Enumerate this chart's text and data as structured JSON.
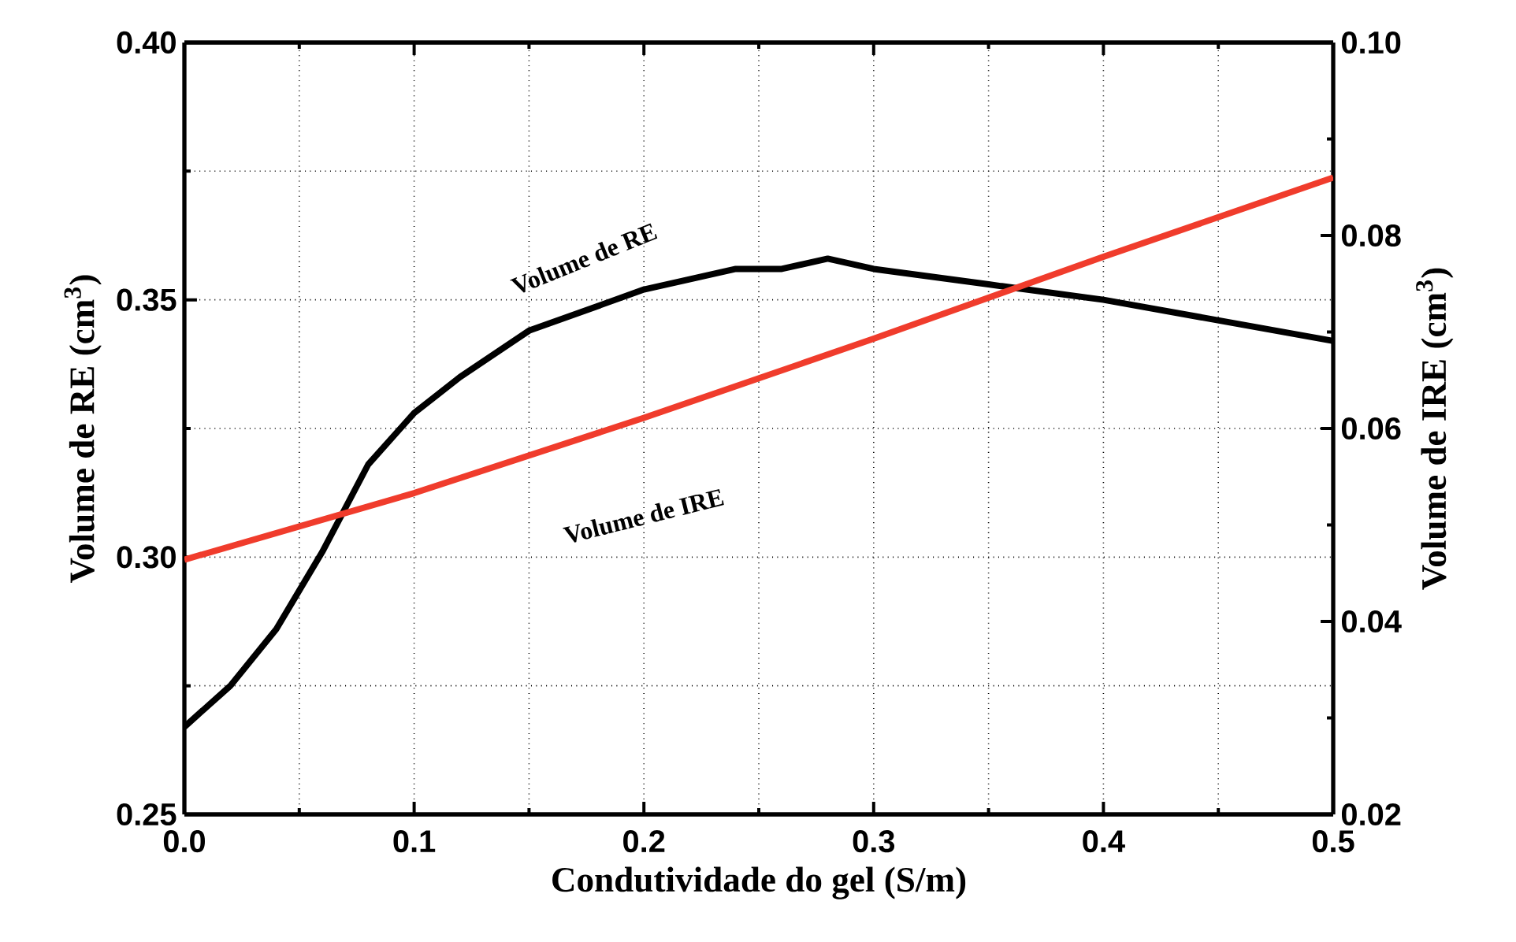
{
  "chart_data": {
    "type": "line",
    "xlabel": "Condutividade do gel (S/m)",
    "ylabel": "Volume de RE (cm$^{3}$)",
    "y2label": "Volume de IRE (cm$^{3}$)",
    "annotations": [
      "Volume de RE",
      "Volume de IRE"
    ],
    "xlim": [
      0,
      0.5
    ],
    "ylim": [
      0.25,
      0.4
    ],
    "y2lim": [
      0.02,
      0.1
    ],
    "xticks": [
      {
        "value": 0,
        "label": "0.0"
      },
      {
        "value": 0.1,
        "label": "0.1"
      },
      {
        "value": 0.2,
        "label": "0.2"
      },
      {
        "value": 0.3,
        "label": "0.3"
      },
      {
        "value": 0.4,
        "label": "0.4"
      },
      {
        "value": 0.5,
        "label": "0.5"
      }
    ],
    "yticks": [
      {
        "value": 0.25,
        "label": "0.25"
      },
      {
        "value": 0.3,
        "label": "0.30"
      },
      {
        "value": 0.35,
        "label": "0.35"
      },
      {
        "value": 0.4,
        "label": "0.40"
      }
    ],
    "y2ticks": [
      {
        "value": 0.02,
        "label": "0.02"
      },
      {
        "value": 0.04,
        "label": "0.04"
      },
      {
        "value": 0.06,
        "label": "0.06"
      },
      {
        "value": 0.08,
        "label": "0.08"
      },
      {
        "value": 0.1,
        "label": "0.10"
      }
    ],
    "grid": true,
    "marker": "none",
    "line_style": "solid",
    "series": [
      {
        "color": "#000000",
        "x": [
          0,
          0.02,
          0.04,
          0.06,
          0.08,
          0.1,
          0.12,
          0.15,
          0.2,
          0.24,
          0.26,
          0.28,
          0.3,
          0.35,
          0.4,
          0.45,
          0.5
        ],
        "values": [
          0.267,
          0.275,
          0.286,
          0.301,
          0.318,
          0.328,
          0.335,
          0.344,
          0.352,
          0.356,
          0.356,
          0.358,
          0.356,
          0.353,
          0.35,
          0.346,
          0.342
        ]
      },
      {
        "color": "#f03c2c",
        "axis": "y2",
        "x": [
          0,
          0.1,
          0.2,
          0.3,
          0.4,
          0.5
        ],
        "values": [
          0.0464,
          0.0533,
          0.0611,
          0.0693,
          0.0778,
          0.086
        ]
      }
    ]
  }
}
